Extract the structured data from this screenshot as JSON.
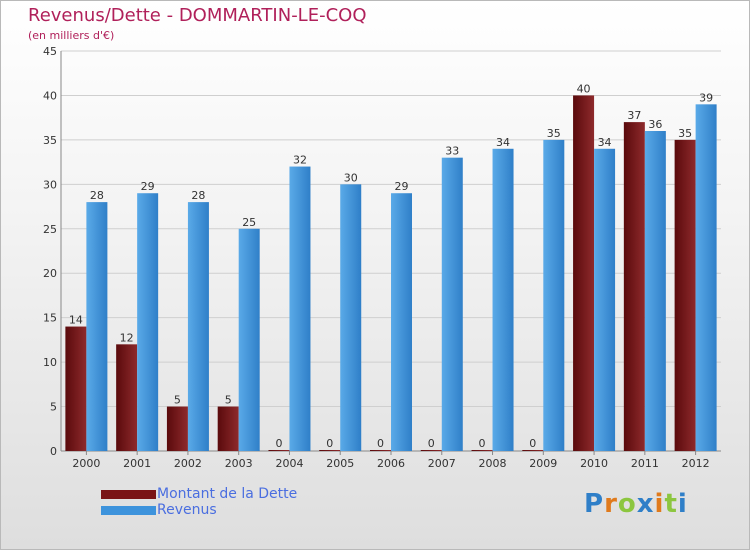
{
  "chart_data": {
    "type": "bar",
    "title": "Revenus/Dette - DOMMARTIN-LE-COQ",
    "subtitle": "(en milliers d'€)",
    "categories": [
      "2000",
      "2001",
      "2002",
      "2003",
      "2004",
      "2005",
      "2006",
      "2007",
      "2008",
      "2009",
      "2010",
      "2011",
      "2012"
    ],
    "series": [
      {
        "name": "Montant de la Dette",
        "color": "#7a1416",
        "values": [
          14,
          12,
          5,
          5,
          0,
          0,
          0,
          0,
          0,
          0,
          40,
          37,
          35
        ]
      },
      {
        "name": "Revenus",
        "color": "#3d93dc",
        "values": [
          28,
          29,
          28,
          25,
          32,
          30,
          29,
          33,
          34,
          35,
          34,
          36,
          39
        ]
      }
    ],
    "ylim": [
      0,
      45
    ],
    "yticks": [
      0,
      5,
      10,
      15,
      20,
      25,
      30,
      35,
      40,
      45
    ],
    "grid": true,
    "legend_position": "bottom-left"
  },
  "logo": {
    "letters": [
      {
        "char": "P",
        "color": "#2f7fc8"
      },
      {
        "char": "r",
        "color": "#e07a1c"
      },
      {
        "char": "o",
        "color": "#8cc63f"
      },
      {
        "char": "x",
        "color": "#2f7fc8"
      },
      {
        "char": "i",
        "color": "#e07a1c"
      },
      {
        "char": "t",
        "color": "#8cc63f"
      },
      {
        "char": "i",
        "color": "#2f7fc8"
      }
    ]
  }
}
